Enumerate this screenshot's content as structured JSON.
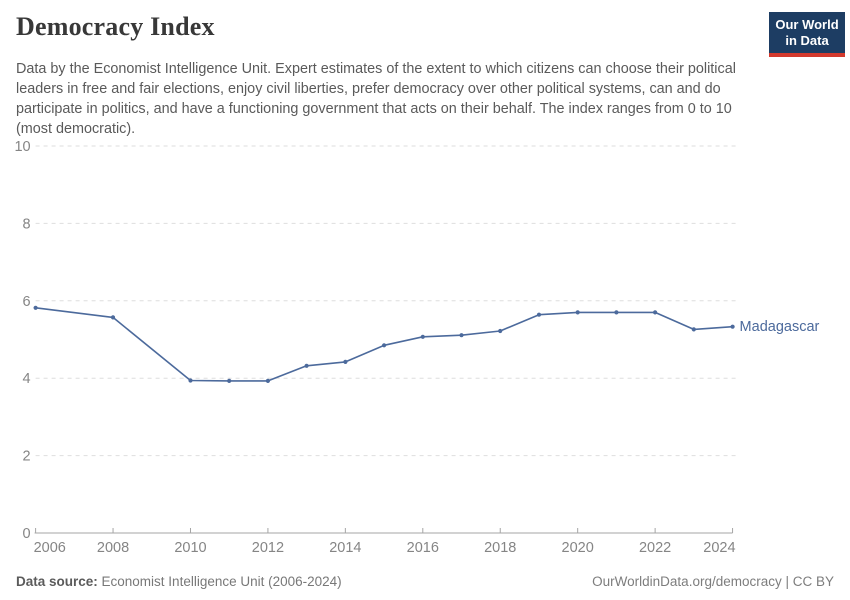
{
  "header": {
    "title": "Democracy Index",
    "subtitle": "Data by the Economist Intelligence Unit. Expert estimates of the extent to which citizens can choose their political leaders in free and fair elections, enjoy civil liberties, prefer democracy over other political systems, can and do participate in politics, and have a functioning government that acts on their behalf. The index ranges from 0 to 10 (most democratic).",
    "logo": {
      "line1": "Our World",
      "line2": "in Data",
      "bg_color": "#1d3d63",
      "accent_color": "#d3392d"
    }
  },
  "chart_data": {
    "type": "line",
    "title": "Democracy Index",
    "entity_label": "Madagascar",
    "series": [
      {
        "name": "Madagascar",
        "x": [
          2006,
          2008,
          2010,
          2011,
          2012,
          2013,
          2014,
          2015,
          2016,
          2017,
          2018,
          2019,
          2020,
          2021,
          2022,
          2023,
          2024
        ],
        "values": [
          5.82,
          5.57,
          3.94,
          3.93,
          3.93,
          4.32,
          4.42,
          4.85,
          5.07,
          5.11,
          5.22,
          5.64,
          5.7,
          5.7,
          5.7,
          5.26,
          5.33
        ]
      }
    ],
    "xlabel": "",
    "ylabel": "",
    "ylim": [
      0,
      10
    ],
    "yticks": [
      0,
      2,
      4,
      6,
      8,
      10
    ],
    "xticks": [
      2006,
      2008,
      2010,
      2012,
      2014,
      2016,
      2018,
      2020,
      2022,
      2024
    ],
    "grid": "dashed horizontal",
    "legend_position": "right-of-line-end",
    "line_color": "#4c6a9c",
    "gridline_color": "#dedede",
    "axis_color": "#a5a5a5",
    "tick_label_color": "#858585"
  },
  "footer": {
    "source_label": "Data source:",
    "source_value": " Economist Intelligence Unit (2006-2024)",
    "credit": "OurWorldinData.org/democracy | CC BY"
  }
}
